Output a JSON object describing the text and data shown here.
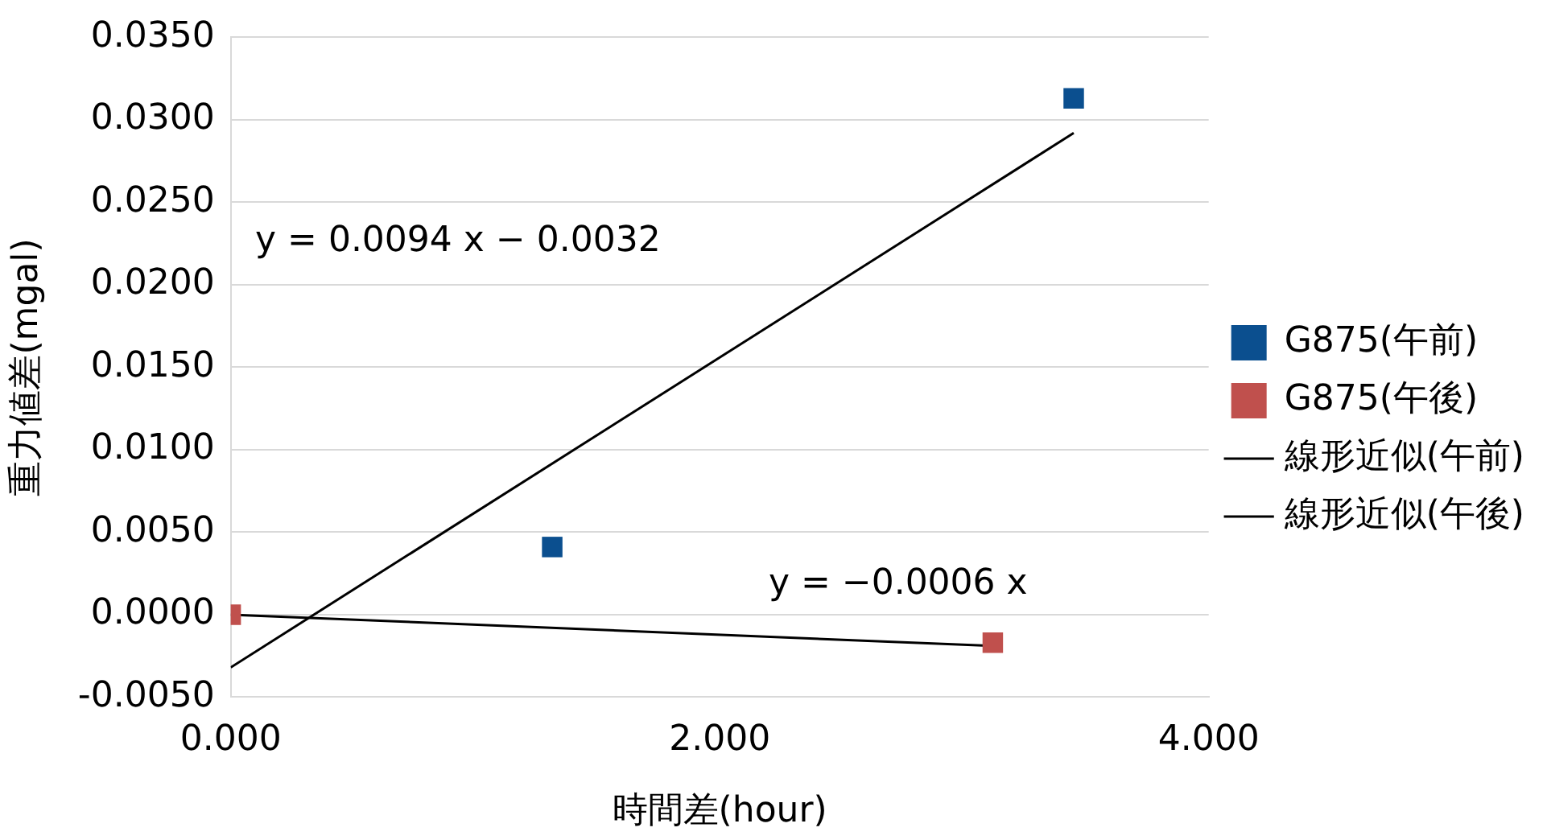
{
  "chart_data": {
    "type": "scatter",
    "xlabel": "時間差(hour)",
    "ylabel": "重力値差(mgal)",
    "xlim": [
      0,
      4
    ],
    "xticks": [
      {
        "value": 0,
        "label": "0.000"
      },
      {
        "value": 2,
        "label": "2.000"
      },
      {
        "value": 4,
        "label": "4.000"
      }
    ],
    "ylim": [
      -0.005,
      0.035
    ],
    "yticks": [
      {
        "value": -0.005,
        "label": "-0.0050"
      },
      {
        "value": 0,
        "label": "0.0000"
      },
      {
        "value": 0.005,
        "label": "0.0050"
      },
      {
        "value": 0.01,
        "label": "0.0100"
      },
      {
        "value": 0.015,
        "label": "0.0150"
      },
      {
        "value": 0.02,
        "label": "0.0200"
      },
      {
        "value": 0.025,
        "label": "0.0250"
      },
      {
        "value": 0.03,
        "label": "0.0300"
      },
      {
        "value": 0.035,
        "label": "0.0350"
      }
    ],
    "grid": "y",
    "legend": "right",
    "series": [
      {
        "name": "G875(午前)",
        "type": "scatter",
        "marker": "square",
        "color": "#0b4f8f",
        "x": [
          1.315,
          3.448
        ],
        "values": [
          0.0041,
          0.0313
        ]
      },
      {
        "name": "G875(午後)",
        "type": "scatter",
        "marker": "square",
        "color": "#c0504d",
        "x": [
          0,
          3.117
        ],
        "values": [
          0,
          -0.0017
        ]
      },
      {
        "name": "線形近似(午前)",
        "type": "line",
        "marker": "none",
        "color": "#000000",
        "x": [
          0,
          3.448
        ],
        "values": [
          -0.0032,
          0.0292
        ]
      },
      {
        "name": "線形近似(午後)",
        "type": "line",
        "marker": "none",
        "color": "#000000",
        "x": [
          0,
          3.117
        ],
        "values": [
          0,
          -0.0019
        ]
      }
    ],
    "annotations": [
      "y = 0.0094 x − 0.0032",
      "y = −0.0006 x"
    ]
  }
}
